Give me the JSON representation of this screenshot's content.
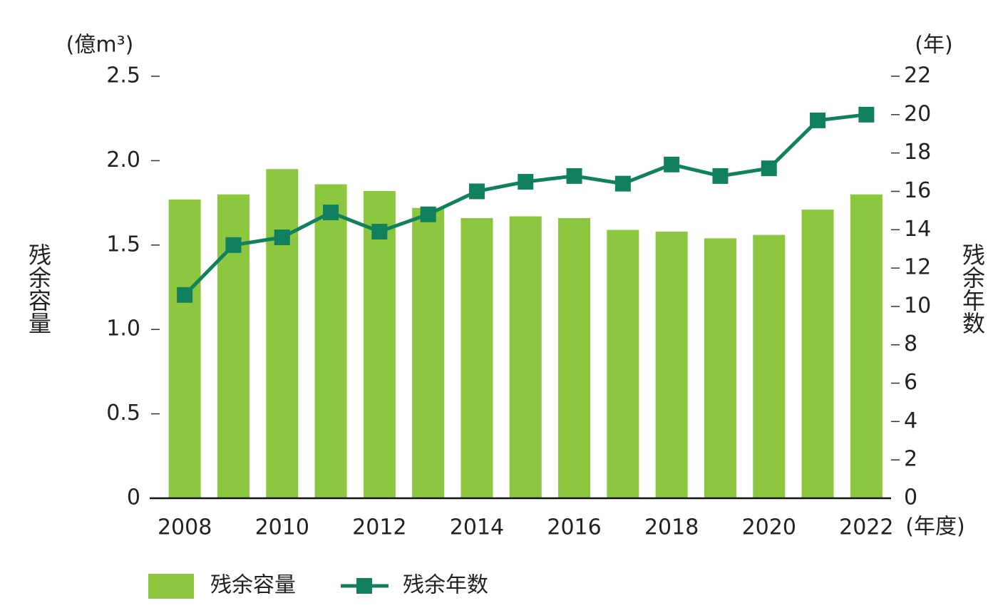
{
  "chart_data": {
    "type": "bar",
    "categories": [
      "2008",
      null,
      "2010",
      null,
      "2012",
      null,
      "2014",
      null,
      "2016",
      null,
      "2018",
      null,
      "2020",
      null,
      "2022"
    ],
    "x_unit": "(年度)",
    "y_unit": "(億m³)",
    "y2_unit": "(年)",
    "y_label": "残余容量",
    "y2_label": "残余年数",
    "ylim": [
      0,
      2.5
    ],
    "yticks": [
      0,
      0.5,
      {
        "value": 1,
        "label": "1.0"
      },
      1.5,
      {
        "value": 2,
        "label": "2.0"
      },
      2.5
    ],
    "y2lim": [
      0,
      22
    ],
    "y2ticks": [
      0,
      2,
      4,
      6,
      8,
      10,
      12,
      14,
      16,
      18,
      20,
      22
    ],
    "series": [
      {
        "name": "残余容量",
        "type": "bar",
        "color": "#8dc63f",
        "values": [
          1.77,
          1.8,
          1.95,
          1.86,
          1.82,
          1.72,
          1.66,
          1.67,
          1.66,
          1.59,
          1.58,
          1.54,
          1.56,
          1.71,
          1.8
        ]
      },
      {
        "name": "残余年数",
        "type": "line",
        "axis": "y2",
        "color": "#10805f",
        "values": [
          10.6,
          13.2,
          13.6,
          14.9,
          13.9,
          14.8,
          16.0,
          16.5,
          16.8,
          16.4,
          17.4,
          16.8,
          17.2,
          19.7,
          20.0
        ]
      }
    ],
    "legend": "bottom-left"
  }
}
